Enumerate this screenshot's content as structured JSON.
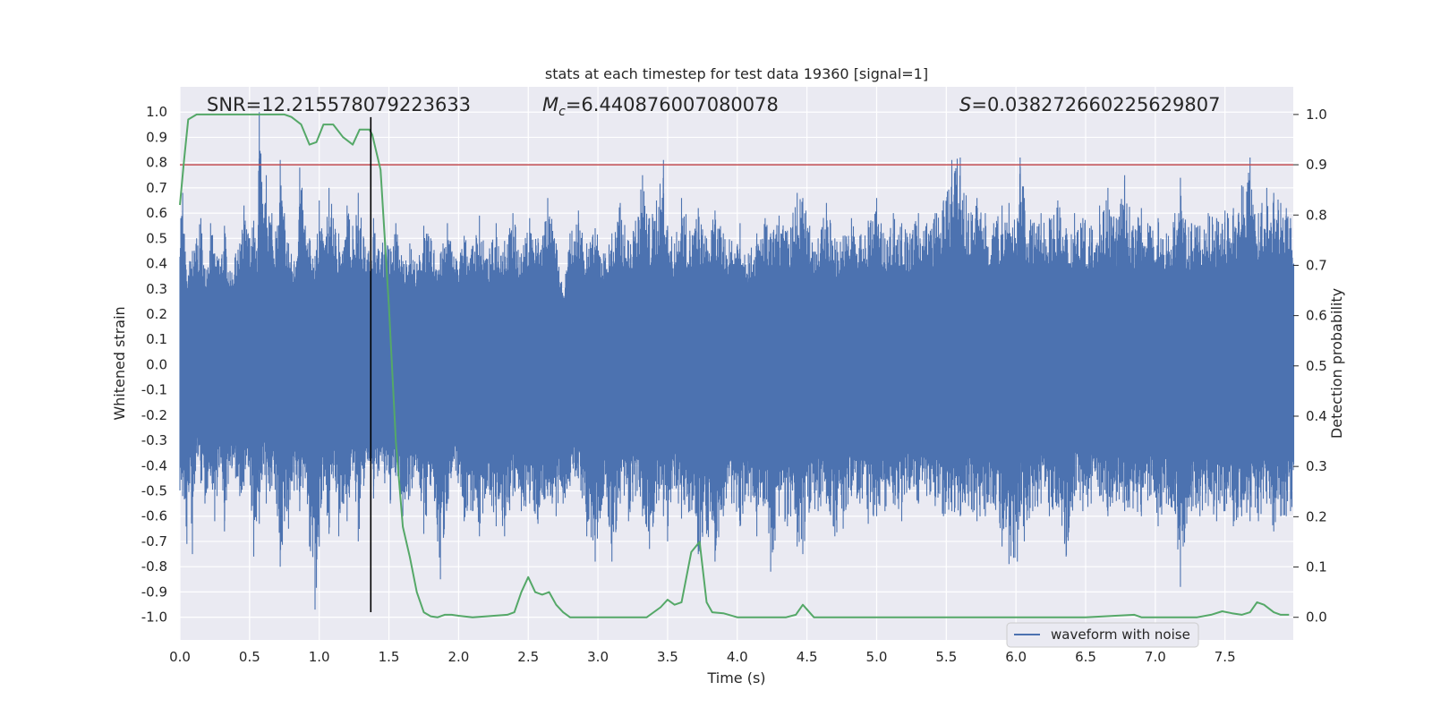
{
  "chart_data": {
    "type": "line",
    "title": "stats at each timestep for test data 19360 [signal=1]",
    "xlabel": "Time (s)",
    "ylabel": "Whitened strain",
    "y2label": "Detection probability",
    "xlim": [
      0.0,
      7.99
    ],
    "ylim": [
      -1.09,
      1.1
    ],
    "y2lim": [
      -0.045,
      1.055
    ],
    "xticks": [
      "0.0",
      "0.5",
      "1.0",
      "1.5",
      "2.0",
      "2.5",
      "3.0",
      "3.5",
      "4.0",
      "4.5",
      "5.0",
      "5.5",
      "6.0",
      "6.5",
      "7.0",
      "7.5"
    ],
    "yticks": [
      "-1.0",
      "-0.9",
      "-0.8",
      "-0.7",
      "-0.6",
      "-0.5",
      "-0.4",
      "-0.3",
      "-0.2",
      "-0.1",
      "0.0",
      "0.1",
      "0.2",
      "0.3",
      "0.4",
      "0.5",
      "0.6",
      "0.7",
      "0.8",
      "0.9",
      "1.0"
    ],
    "y2ticks": [
      "0.0",
      "0.1",
      "0.2",
      "0.3",
      "0.4",
      "0.5",
      "0.6",
      "0.7",
      "0.8",
      "0.9",
      "1.0"
    ],
    "grid": true,
    "legend_position": "bottom-right",
    "annotations": {
      "snr": "SNR=12.215578079223633",
      "mc_symbol": "M",
      "mc_sub": "c",
      "mc_value": "=6.440876007080078",
      "s_symbol": "S",
      "s_value": "=0.038272660225629807"
    },
    "threshold": {
      "y2": 0.9,
      "color": "#c44e52"
    },
    "marker_line": {
      "x": 1.37,
      "color": "#000000"
    },
    "series": [
      {
        "name": "waveform with noise",
        "axis": "left",
        "style": "noise-band",
        "color": "#4c72b0",
        "band": [
          -0.19,
          0.21
        ],
        "peaks": [
          [
            0.02,
            0.68,
            -0.52
          ],
          [
            0.05,
            0.33,
            -0.71
          ],
          [
            0.07,
            0.41,
            -0.47
          ],
          [
            0.09,
            0.45,
            -0.75
          ],
          [
            0.12,
            0.5,
            -0.35
          ],
          [
            0.15,
            0.58,
            -0.47
          ],
          [
            0.18,
            0.38,
            -0.55
          ],
          [
            0.22,
            0.56,
            -0.44
          ],
          [
            0.25,
            0.44,
            -0.62
          ],
          [
            0.28,
            0.42,
            -0.4
          ],
          [
            0.32,
            0.55,
            -0.66
          ],
          [
            0.36,
            0.37,
            -0.4
          ],
          [
            0.4,
            0.44,
            -0.45
          ],
          [
            0.43,
            0.48,
            -0.52
          ],
          [
            0.46,
            0.63,
            -0.48
          ],
          [
            0.49,
            0.52,
            -0.4
          ],
          [
            0.53,
            0.57,
            -0.76
          ],
          [
            0.55,
            0.45,
            -0.62
          ],
          [
            0.57,
            1.0,
            -0.63
          ],
          [
            0.6,
            0.56,
            -0.38
          ],
          [
            0.62,
            0.75,
            -0.55
          ],
          [
            0.66,
            0.6,
            -0.48
          ],
          [
            0.7,
            0.55,
            -0.6
          ],
          [
            0.72,
            0.81,
            -0.8
          ],
          [
            0.75,
            0.6,
            -0.62
          ],
          [
            0.78,
            0.48,
            -0.65
          ],
          [
            0.82,
            0.41,
            -0.5
          ],
          [
            0.86,
            0.78,
            -0.58
          ],
          [
            0.9,
            0.55,
            -0.45
          ],
          [
            0.93,
            0.5,
            -0.72
          ],
          [
            0.97,
            0.43,
            -0.97
          ],
          [
            1.0,
            0.65,
            -0.72
          ],
          [
            1.03,
            0.48,
            -0.5
          ],
          [
            1.07,
            0.7,
            -0.67
          ],
          [
            1.1,
            0.58,
            -0.45
          ],
          [
            1.14,
            0.52,
            -0.68
          ],
          [
            1.17,
            0.45,
            -0.55
          ],
          [
            1.2,
            0.63,
            -0.62
          ],
          [
            1.24,
            0.55,
            -0.42
          ],
          [
            1.28,
            0.68,
            -0.7
          ],
          [
            1.32,
            0.5,
            -0.48
          ],
          [
            1.35,
            0.44,
            -0.38
          ],
          [
            1.39,
            0.58,
            -0.53
          ],
          [
            1.43,
            0.45,
            -0.42
          ],
          [
            1.47,
            0.52,
            -0.47
          ],
          [
            1.51,
            0.46,
            -0.55
          ],
          [
            1.55,
            0.56,
            -0.44
          ],
          [
            1.6,
            0.41,
            -0.6
          ],
          [
            1.65,
            0.48,
            -0.52
          ],
          [
            1.7,
            0.4,
            -0.42
          ],
          [
            1.75,
            0.55,
            -0.67
          ],
          [
            1.8,
            0.5,
            -0.48
          ],
          [
            1.87,
            0.44,
            -0.85
          ],
          [
            1.92,
            0.56,
            -0.55
          ],
          [
            1.98,
            0.42,
            -0.42
          ],
          [
            2.04,
            0.51,
            -0.62
          ],
          [
            2.1,
            0.47,
            -0.58
          ],
          [
            2.15,
            0.59,
            -0.68
          ],
          [
            2.2,
            0.42,
            -0.49
          ],
          [
            2.27,
            0.56,
            -0.64
          ],
          [
            2.33,
            0.49,
            -0.68
          ],
          [
            2.39,
            0.6,
            -0.52
          ],
          [
            2.45,
            0.44,
            -0.58
          ],
          [
            2.51,
            0.58,
            -0.55
          ],
          [
            2.57,
            0.5,
            -0.63
          ],
          [
            2.64,
            0.66,
            -0.52
          ],
          [
            2.7,
            0.48,
            -0.6
          ],
          [
            2.75,
            0.27,
            -0.55
          ],
          [
            2.8,
            0.52,
            -0.48
          ],
          [
            2.86,
            0.61,
            -0.45
          ],
          [
            2.92,
            0.48,
            -0.68
          ],
          [
            2.98,
            0.54,
            -0.78
          ],
          [
            3.04,
            0.44,
            -0.52
          ],
          [
            3.1,
            0.52,
            -0.78
          ],
          [
            3.16,
            0.64,
            -0.55
          ],
          [
            3.22,
            0.49,
            -0.62
          ],
          [
            3.27,
            0.57,
            -0.52
          ],
          [
            3.32,
            0.75,
            -0.6
          ],
          [
            3.37,
            0.58,
            -0.73
          ],
          [
            3.42,
            0.65,
            -0.55
          ],
          [
            3.47,
            0.81,
            -0.6
          ],
          [
            3.5,
            0.55,
            -0.7
          ],
          [
            3.55,
            0.48,
            -0.48
          ],
          [
            3.6,
            0.66,
            -0.61
          ],
          [
            3.66,
            0.53,
            -0.58
          ],
          [
            3.72,
            0.62,
            -0.75
          ],
          [
            3.78,
            0.5,
            -0.67
          ],
          [
            3.84,
            0.61,
            -0.78
          ],
          [
            3.9,
            0.52,
            -0.6
          ],
          [
            3.96,
            0.49,
            -0.55
          ],
          [
            4.02,
            0.56,
            -0.64
          ],
          [
            4.08,
            0.44,
            -0.52
          ],
          [
            4.14,
            0.52,
            -0.68
          ],
          [
            4.2,
            0.58,
            -0.55
          ],
          [
            4.24,
            0.52,
            -0.82
          ],
          [
            4.3,
            0.59,
            -0.6
          ],
          [
            4.36,
            0.53,
            -0.64
          ],
          [
            4.43,
            0.68,
            -0.72
          ],
          [
            4.47,
            0.66,
            -0.75
          ],
          [
            4.52,
            0.55,
            -0.57
          ],
          [
            4.58,
            0.5,
            -0.58
          ],
          [
            4.64,
            0.64,
            -0.55
          ],
          [
            4.7,
            0.5,
            -0.68
          ],
          [
            4.76,
            0.51,
            -0.65
          ],
          [
            4.82,
            0.58,
            -0.52
          ],
          [
            4.88,
            0.51,
            -0.55
          ],
          [
            4.94,
            0.57,
            -0.63
          ],
          [
            5.0,
            0.66,
            -0.6
          ],
          [
            5.06,
            0.5,
            -0.58
          ],
          [
            5.12,
            0.6,
            -0.55
          ],
          [
            5.18,
            0.56,
            -0.62
          ],
          [
            5.24,
            0.52,
            -0.49
          ],
          [
            5.3,
            0.6,
            -0.55
          ],
          [
            5.36,
            0.56,
            -0.52
          ],
          [
            5.42,
            0.6,
            -0.56
          ],
          [
            5.48,
            0.65,
            -0.6
          ],
          [
            5.54,
            0.81,
            -0.58
          ],
          [
            5.6,
            0.82,
            -0.6
          ],
          [
            5.66,
            0.6,
            -0.56
          ],
          [
            5.72,
            0.66,
            -0.62
          ],
          [
            5.78,
            0.6,
            -0.6
          ],
          [
            5.84,
            0.56,
            -0.55
          ],
          [
            5.9,
            0.63,
            -0.72
          ],
          [
            5.95,
            0.64,
            -0.79
          ],
          [
            6.01,
            0.58,
            -0.78
          ],
          [
            6.03,
            0.82,
            -0.6
          ],
          [
            6.06,
            0.66,
            -0.7
          ],
          [
            6.12,
            0.56,
            -0.58
          ],
          [
            6.18,
            0.6,
            -0.55
          ],
          [
            6.24,
            0.58,
            -0.6
          ],
          [
            6.3,
            0.65,
            -0.55
          ],
          [
            6.36,
            0.54,
            -0.76
          ],
          [
            6.42,
            0.6,
            -0.52
          ],
          [
            6.48,
            0.58,
            -0.58
          ],
          [
            6.54,
            0.55,
            -0.55
          ],
          [
            6.6,
            0.63,
            -0.52
          ],
          [
            6.66,
            0.7,
            -0.6
          ],
          [
            6.72,
            0.58,
            -0.54
          ],
          [
            6.78,
            0.75,
            -0.58
          ],
          [
            6.84,
            0.55,
            -0.57
          ],
          [
            6.9,
            0.62,
            -0.6
          ],
          [
            6.96,
            0.55,
            -0.52
          ],
          [
            7.02,
            0.58,
            -0.64
          ],
          [
            7.08,
            0.52,
            -0.55
          ],
          [
            7.14,
            0.6,
            -0.58
          ],
          [
            7.18,
            0.74,
            -0.88
          ],
          [
            7.2,
            0.58,
            -0.72
          ],
          [
            7.26,
            0.56,
            -0.58
          ],
          [
            7.32,
            0.55,
            -0.6
          ],
          [
            7.38,
            0.6,
            -0.56
          ],
          [
            7.44,
            0.58,
            -0.62
          ],
          [
            7.5,
            0.61,
            -0.58
          ],
          [
            7.56,
            0.62,
            -0.64
          ],
          [
            7.62,
            0.71,
            -0.6
          ],
          [
            7.68,
            0.82,
            -0.62
          ],
          [
            7.74,
            0.6,
            -0.62
          ],
          [
            7.8,
            0.7,
            -0.55
          ],
          [
            7.85,
            0.68,
            -0.66
          ],
          [
            7.9,
            0.64,
            -0.6
          ],
          [
            7.94,
            0.62,
            -0.6
          ],
          [
            7.97,
            0.58,
            -0.58
          ]
        ]
      },
      {
        "name": "",
        "axis": "right",
        "style": "line",
        "color": "#55a868",
        "points": [
          [
            0.0,
            0.82
          ],
          [
            0.03,
            0.91
          ],
          [
            0.06,
            0.99
          ],
          [
            0.12,
            1.0
          ],
          [
            0.4,
            1.0
          ],
          [
            0.65,
            1.0
          ],
          [
            0.75,
            1.0
          ],
          [
            0.8,
            0.995
          ],
          [
            0.87,
            0.98
          ],
          [
            0.93,
            0.94
          ],
          [
            0.98,
            0.945
          ],
          [
            1.03,
            0.98
          ],
          [
            1.1,
            0.98
          ],
          [
            1.17,
            0.955
          ],
          [
            1.24,
            0.94
          ],
          [
            1.29,
            0.97
          ],
          [
            1.36,
            0.97
          ],
          [
            1.38,
            0.96
          ],
          [
            1.44,
            0.89
          ],
          [
            1.5,
            0.62
          ],
          [
            1.55,
            0.35
          ],
          [
            1.6,
            0.18
          ],
          [
            1.65,
            0.12
          ],
          [
            1.7,
            0.05
          ],
          [
            1.75,
            0.01
          ],
          [
            1.8,
            0.002
          ],
          [
            1.85,
            0.0
          ],
          [
            1.9,
            0.005
          ],
          [
            1.95,
            0.005
          ],
          [
            2.0,
            0.003
          ],
          [
            2.1,
            0.0
          ],
          [
            2.2,
            0.002
          ],
          [
            2.35,
            0.005
          ],
          [
            2.4,
            0.01
          ],
          [
            2.45,
            0.05
          ],
          [
            2.5,
            0.08
          ],
          [
            2.55,
            0.05
          ],
          [
            2.6,
            0.045
          ],
          [
            2.65,
            0.05
          ],
          [
            2.7,
            0.025
          ],
          [
            2.75,
            0.01
          ],
          [
            2.8,
            0.0
          ],
          [
            3.0,
            0.0
          ],
          [
            3.35,
            0.0
          ],
          [
            3.45,
            0.02
          ],
          [
            3.5,
            0.035
          ],
          [
            3.55,
            0.025
          ],
          [
            3.6,
            0.03
          ],
          [
            3.67,
            0.13
          ],
          [
            3.73,
            0.15
          ],
          [
            3.78,
            0.03
          ],
          [
            3.82,
            0.01
          ],
          [
            3.9,
            0.008
          ],
          [
            4.0,
            0.0
          ],
          [
            4.1,
            0.0
          ],
          [
            4.35,
            0.0
          ],
          [
            4.42,
            0.005
          ],
          [
            4.47,
            0.025
          ],
          [
            4.55,
            0.0
          ],
          [
            4.6,
            0.0
          ],
          [
            5.0,
            0.0
          ],
          [
            5.5,
            0.0
          ],
          [
            6.0,
            0.0
          ],
          [
            6.5,
            0.0
          ],
          [
            6.85,
            0.005
          ],
          [
            6.9,
            0.0
          ],
          [
            7.3,
            0.0
          ],
          [
            7.4,
            0.005
          ],
          [
            7.48,
            0.012
          ],
          [
            7.55,
            0.008
          ],
          [
            7.62,
            0.005
          ],
          [
            7.68,
            0.01
          ],
          [
            7.73,
            0.03
          ],
          [
            7.78,
            0.025
          ],
          [
            7.85,
            0.01
          ],
          [
            7.9,
            0.005
          ],
          [
            7.96,
            0.005
          ]
        ]
      }
    ]
  }
}
